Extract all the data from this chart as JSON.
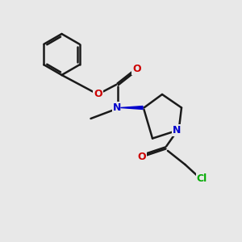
{
  "bg_color": "#e8e8e8",
  "bond_color": "#1a1a1a",
  "N_color": "#0000cc",
  "O_color": "#cc0000",
  "Cl_color": "#00aa00",
  "lw": 1.8,
  "xlim": [
    0,
    10
  ],
  "ylim": [
    0,
    10
  ]
}
